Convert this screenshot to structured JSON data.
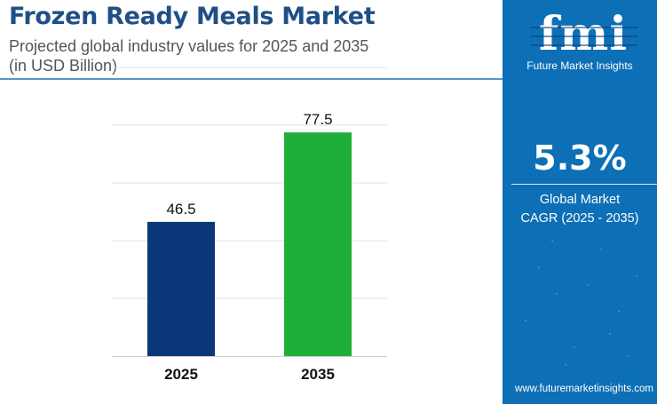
{
  "header": {
    "title": "Frozen Ready Meals Market",
    "subtitle_line1": "Projected global industry values for 2025 and 2035",
    "subtitle_line2": "(in USD Billion)"
  },
  "sidebar": {
    "logo_text": "fmi",
    "brand_name": "Future Market Insights",
    "cagr_value": "5.3%",
    "cagr_label_line1": "Global Market",
    "cagr_label_line2": "CAGR (2025 - 2035)",
    "website": "www.futuremarketinsights.com"
  },
  "colors": {
    "title": "#1f4f86",
    "subtitle": "#555555",
    "rule": "#5b95c8",
    "panel": "#0d6fb5",
    "bar_2025": "#0a3778",
    "bar_2035": "#1daf3a",
    "grid": "#e3e3e3"
  },
  "chart_data": {
    "type": "bar",
    "categories": [
      "2025",
      "2035"
    ],
    "values": [
      46.5,
      77.5
    ],
    "data_labels": [
      "46.5",
      "77.5"
    ],
    "bar_colors": [
      "#0a3778",
      "#1daf3a"
    ],
    "ylim": [
      0,
      100
    ],
    "gridlines": true,
    "title": "",
    "xlabel": "",
    "ylabel": ""
  }
}
